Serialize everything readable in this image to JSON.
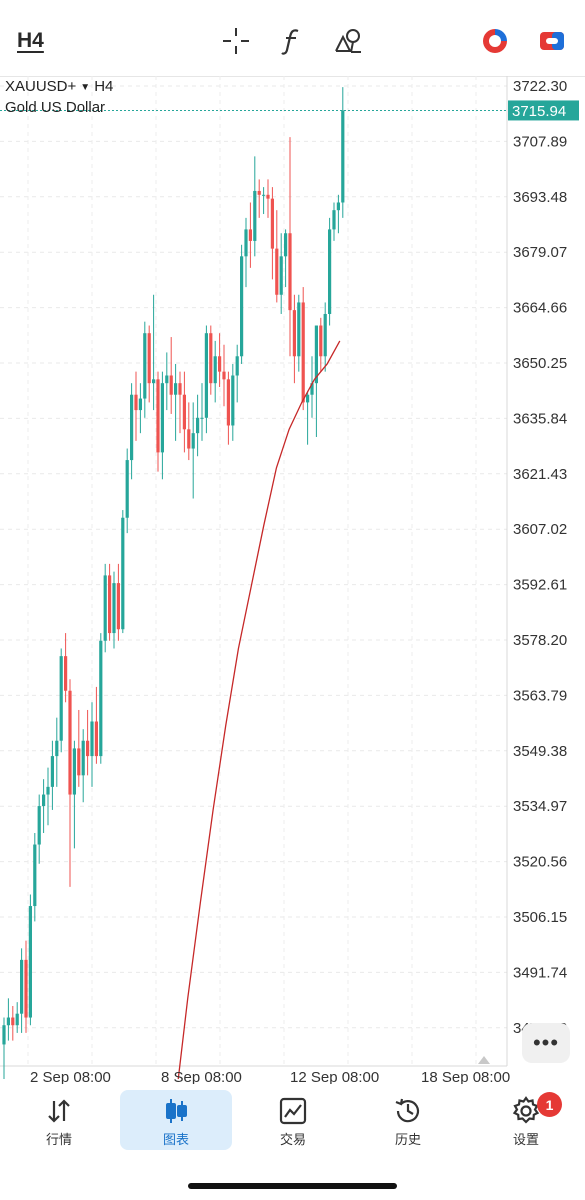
{
  "toolbar": {
    "timeframe": "H4",
    "icons": [
      "crosshair-icon",
      "function-icon",
      "objects-icon",
      "one-click-trading-icon",
      "trade-app-icon"
    ]
  },
  "chart": {
    "symbol": "XAUUSD+",
    "timeframe": "H4",
    "description": "Gold US Dollar",
    "current_price": "3715.94",
    "price_labels": [
      "3722.30",
      "3707.89",
      "3693.48",
      "3679.07",
      "3664.66",
      "3650.25",
      "3635.84",
      "3621.43",
      "3607.02",
      "3592.61",
      "3578.20",
      "3563.79",
      "3549.38",
      "3534.97",
      "3520.56",
      "3506.15",
      "3491.74",
      "3477.33"
    ],
    "date_labels": [
      "2 Sep 08:00",
      "8 Sep 08:00",
      "12 Sep 08:00",
      "18 Sep 08:00"
    ],
    "colors": {
      "bull": "#26a69a",
      "bear": "#ef5350",
      "ma": "#c62828",
      "price_tag": "#26a69a"
    }
  },
  "chart_data": {
    "type": "candlestick",
    "symbol": "XAUUSD+",
    "ylim": [
      3467,
      3727
    ],
    "x_ticks": [
      "2 Sep 08:00",
      "8 Sep 08:00",
      "12 Sep 08:00",
      "18 Sep 08:00"
    ],
    "candles": [
      {
        "o": 3473,
        "h": 3480,
        "l": 3464,
        "c": 3478
      },
      {
        "o": 3478,
        "h": 3485,
        "l": 3474,
        "c": 3480
      },
      {
        "o": 3480,
        "h": 3483,
        "l": 3474,
        "c": 3478
      },
      {
        "o": 3478,
        "h": 3484,
        "l": 3476,
        "c": 3481
      },
      {
        "o": 3481,
        "h": 3498,
        "l": 3476,
        "c": 3495
      },
      {
        "o": 3495,
        "h": 3500,
        "l": 3476,
        "c": 3480
      },
      {
        "o": 3480,
        "h": 3512,
        "l": 3478,
        "c": 3509
      },
      {
        "o": 3509,
        "h": 3528,
        "l": 3505,
        "c": 3525
      },
      {
        "o": 3525,
        "h": 3538,
        "l": 3520,
        "c": 3535
      },
      {
        "o": 3535,
        "h": 3542,
        "l": 3528,
        "c": 3538
      },
      {
        "o": 3538,
        "h": 3545,
        "l": 3530,
        "c": 3540
      },
      {
        "o": 3540,
        "h": 3552,
        "l": 3534,
        "c": 3548
      },
      {
        "o": 3548,
        "h": 3558,
        "l": 3540,
        "c": 3552
      },
      {
        "o": 3552,
        "h": 3576,
        "l": 3549,
        "c": 3574
      },
      {
        "o": 3574,
        "h": 3580,
        "l": 3562,
        "c": 3565
      },
      {
        "o": 3565,
        "h": 3568,
        "l": 3514,
        "c": 3538
      },
      {
        "o": 3538,
        "h": 3552,
        "l": 3524,
        "c": 3550
      },
      {
        "o": 3550,
        "h": 3560,
        "l": 3540,
        "c": 3543
      },
      {
        "o": 3543,
        "h": 3555,
        "l": 3536,
        "c": 3552
      },
      {
        "o": 3552,
        "h": 3560,
        "l": 3543,
        "c": 3548
      },
      {
        "o": 3548,
        "h": 3562,
        "l": 3540,
        "c": 3557
      },
      {
        "o": 3557,
        "h": 3566,
        "l": 3546,
        "c": 3548
      },
      {
        "o": 3548,
        "h": 3580,
        "l": 3546,
        "c": 3578
      },
      {
        "o": 3578,
        "h": 3598,
        "l": 3575,
        "c": 3595
      },
      {
        "o": 3595,
        "h": 3598,
        "l": 3578,
        "c": 3580
      },
      {
        "o": 3580,
        "h": 3596,
        "l": 3576,
        "c": 3593
      },
      {
        "o": 3593,
        "h": 3598,
        "l": 3578,
        "c": 3581
      },
      {
        "o": 3581,
        "h": 3612,
        "l": 3580,
        "c": 3610
      },
      {
        "o": 3610,
        "h": 3628,
        "l": 3606,
        "c": 3625
      },
      {
        "o": 3625,
        "h": 3645,
        "l": 3620,
        "c": 3642
      },
      {
        "o": 3642,
        "h": 3648,
        "l": 3630,
        "c": 3638
      },
      {
        "o": 3638,
        "h": 3645,
        "l": 3632,
        "c": 3641
      },
      {
        "o": 3641,
        "h": 3661,
        "l": 3636,
        "c": 3658
      },
      {
        "o": 3658,
        "h": 3660,
        "l": 3640,
        "c": 3645
      },
      {
        "o": 3645,
        "h": 3668,
        "l": 3638,
        "c": 3646
      },
      {
        "o": 3646,
        "h": 3648,
        "l": 3622,
        "c": 3627
      },
      {
        "o": 3627,
        "h": 3648,
        "l": 3620,
        "c": 3645
      },
      {
        "o": 3645,
        "h": 3653,
        "l": 3638,
        "c": 3647
      },
      {
        "o": 3647,
        "h": 3657,
        "l": 3637,
        "c": 3642
      },
      {
        "o": 3642,
        "h": 3650,
        "l": 3630,
        "c": 3645
      },
      {
        "o": 3645,
        "h": 3648,
        "l": 3632,
        "c": 3642
      },
      {
        "o": 3642,
        "h": 3648,
        "l": 3627,
        "c": 3633
      },
      {
        "o": 3633,
        "h": 3640,
        "l": 3625,
        "c": 3628
      },
      {
        "o": 3628,
        "h": 3640,
        "l": 3615,
        "c": 3632
      },
      {
        "o": 3632,
        "h": 3642,
        "l": 3626,
        "c": 3636
      },
      {
        "o": 3636,
        "h": 3645,
        "l": 3630,
        "c": 3636
      },
      {
        "o": 3636,
        "h": 3660,
        "l": 3632,
        "c": 3658
      },
      {
        "o": 3658,
        "h": 3660,
        "l": 3642,
        "c": 3645
      },
      {
        "o": 3645,
        "h": 3656,
        "l": 3640,
        "c": 3652
      },
      {
        "o": 3652,
        "h": 3658,
        "l": 3644,
        "c": 3648
      },
      {
        "o": 3648,
        "h": 3655,
        "l": 3639,
        "c": 3646
      },
      {
        "o": 3646,
        "h": 3648,
        "l": 3629,
        "c": 3634
      },
      {
        "o": 3634,
        "h": 3650,
        "l": 3630,
        "c": 3647
      },
      {
        "o": 3647,
        "h": 3655,
        "l": 3640,
        "c": 3652
      },
      {
        "o": 3652,
        "h": 3681,
        "l": 3650,
        "c": 3678
      },
      {
        "o": 3678,
        "h": 3688,
        "l": 3670,
        "c": 3685
      },
      {
        "o": 3685,
        "h": 3692,
        "l": 3675,
        "c": 3682
      },
      {
        "o": 3682,
        "h": 3704,
        "l": 3678,
        "c": 3695
      },
      {
        "o": 3695,
        "h": 3698,
        "l": 3688,
        "c": 3694
      },
      {
        "o": 3694,
        "h": 3696,
        "l": 3689,
        "c": 3694
      },
      {
        "o": 3694,
        "h": 3698,
        "l": 3688,
        "c": 3693
      },
      {
        "o": 3693,
        "h": 3696,
        "l": 3672,
        "c": 3680
      },
      {
        "o": 3680,
        "h": 3690,
        "l": 3666,
        "c": 3668
      },
      {
        "o": 3668,
        "h": 3684,
        "l": 3663,
        "c": 3678
      },
      {
        "o": 3678,
        "h": 3685,
        "l": 3670,
        "c": 3684
      },
      {
        "o": 3684,
        "h": 3709,
        "l": 3652,
        "c": 3664
      },
      {
        "o": 3664,
        "h": 3668,
        "l": 3645,
        "c": 3652
      },
      {
        "o": 3652,
        "h": 3668,
        "l": 3648,
        "c": 3666
      },
      {
        "o": 3666,
        "h": 3670,
        "l": 3638,
        "c": 3640
      },
      {
        "o": 3640,
        "h": 3643,
        "l": 3629,
        "c": 3642
      },
      {
        "o": 3642,
        "h": 3652,
        "l": 3636,
        "c": 3645
      },
      {
        "o": 3645,
        "h": 3660,
        "l": 3631,
        "c": 3660
      },
      {
        "o": 3660,
        "h": 3662,
        "l": 3648,
        "c": 3652
      },
      {
        "o": 3652,
        "h": 3666,
        "l": 3648,
        "c": 3663
      },
      {
        "o": 3663,
        "h": 3688,
        "l": 3660,
        "c": 3685
      },
      {
        "o": 3685,
        "h": 3692,
        "l": 3682,
        "c": 3690
      },
      {
        "o": 3690,
        "h": 3694,
        "l": 3684,
        "c": 3692
      },
      {
        "o": 3692,
        "h": 3722,
        "l": 3688,
        "c": 3715.94
      }
    ],
    "moving_average": [
      {
        "i": 55,
        "v": 3464
      },
      {
        "i": 58,
        "v": 3485
      },
      {
        "i": 62,
        "v": 3510
      },
      {
        "i": 66,
        "v": 3534
      },
      {
        "i": 70,
        "v": 3556
      },
      {
        "i": 74,
        "v": 3576
      },
      {
        "i": 78,
        "v": 3592
      },
      {
        "i": 82,
        "v": 3608
      },
      {
        "i": 86,
        "v": 3623
      },
      {
        "i": 90,
        "v": 3633
      },
      {
        "i": 94,
        "v": 3640
      },
      {
        "i": 98,
        "v": 3646
      },
      {
        "i": 102,
        "v": 3650
      },
      {
        "i": 106,
        "v": 3656
      }
    ]
  },
  "nav": {
    "items": [
      {
        "label": "行情",
        "icon": "quotes-icon"
      },
      {
        "label": "图表",
        "icon": "chart-icon"
      },
      {
        "label": "交易",
        "icon": "trade-icon"
      },
      {
        "label": "历史",
        "icon": "history-icon"
      },
      {
        "label": "设置",
        "icon": "settings-icon"
      }
    ],
    "badge": "1"
  }
}
